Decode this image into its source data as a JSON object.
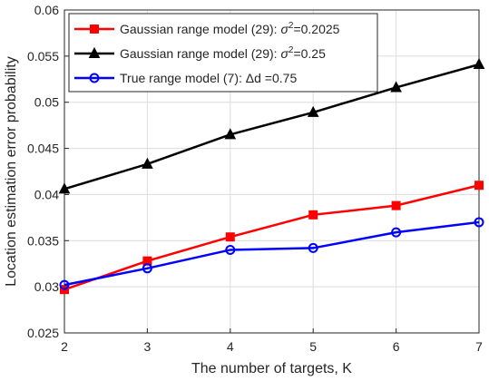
{
  "chart_data": {
    "type": "line",
    "title": "",
    "xlabel": "The number of targets, K",
    "ylabel": "Location estimation error probability",
    "x": [
      2,
      3,
      4,
      5,
      6,
      7
    ],
    "xlim": [
      2,
      7
    ],
    "ylim": [
      0.025,
      0.06
    ],
    "xticks": [
      2,
      3,
      4,
      5,
      6,
      7
    ],
    "yticks": [
      0.025,
      0.03,
      0.035,
      0.04,
      0.045,
      0.05,
      0.055,
      0.06
    ],
    "ytick_labels": [
      "0.025",
      "0.03",
      "0.035",
      "0.04",
      "0.045",
      "0.05",
      "0.055",
      "0.06"
    ],
    "grid": true,
    "legend_position": "top-left",
    "series": [
      {
        "name_prefix": "Gaussian range model (29): ",
        "name_symbol": "σ",
        "name_sup": "2",
        "name_suffix": "=0.2025",
        "color": "#ff0000",
        "marker": "square",
        "values": [
          0.0297,
          0.0328,
          0.0354,
          0.0378,
          0.0388,
          0.041
        ]
      },
      {
        "name_prefix": "Gaussian range model (29): ",
        "name_symbol": "σ",
        "name_sup": "2",
        "name_suffix": "=0.25",
        "color": "#000000",
        "marker": "triangle",
        "values": [
          0.0406,
          0.0433,
          0.0465,
          0.0489,
          0.0516,
          0.0541
        ]
      },
      {
        "name_prefix": "True range model (7): ",
        "name_symbol": "Δ",
        "name_sup": "",
        "name_suffix": "d =0.75",
        "color": "#0000ff",
        "marker": "circle",
        "values": [
          0.0302,
          0.032,
          0.034,
          0.0342,
          0.0359,
          0.037
        ]
      }
    ]
  }
}
